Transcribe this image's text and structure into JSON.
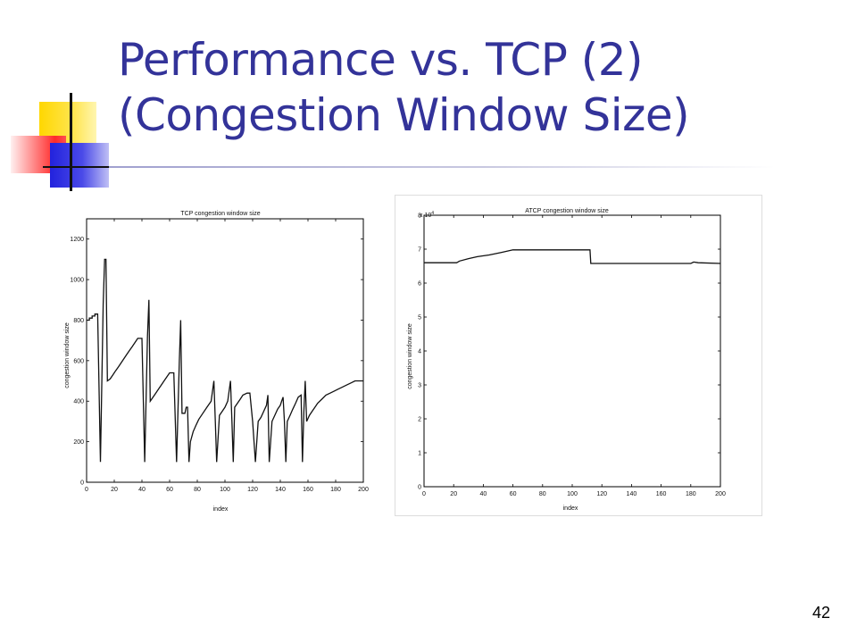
{
  "slide": {
    "title_line1": "Performance vs. TCP (2)",
    "title_line2": "(Congestion Window Size)",
    "page_number": "42"
  },
  "colors": {
    "title": "#333399",
    "deco_yellow": "#ffd700",
    "deco_blue": "#2222dd",
    "deco_red": "#ff3333"
  },
  "chart_data": [
    {
      "type": "line",
      "title": "TCP congestion window size",
      "xlabel": "index",
      "ylabel": "congestion window size",
      "xlim": [
        0,
        200
      ],
      "ylim": [
        0,
        1300
      ],
      "xticks": [
        0,
        20,
        40,
        60,
        80,
        100,
        120,
        140,
        160,
        180,
        200
      ],
      "yticks": [
        0,
        200,
        400,
        600,
        800,
        1000,
        1200
      ],
      "grid": false,
      "series": [
        {
          "points": [
            [
              0,
              800
            ],
            [
              2,
              800
            ],
            [
              2,
              810
            ],
            [
              4,
              810
            ],
            [
              4,
              820
            ],
            [
              6,
              820
            ],
            [
              6,
              830
            ],
            [
              8,
              830
            ],
            [
              10,
              100
            ],
            [
              12,
              880
            ],
            [
              13,
              1100
            ],
            [
              14,
              1100
            ],
            [
              15,
              500
            ],
            [
              17,
              510
            ],
            [
              19,
              530
            ],
            [
              21,
              550
            ],
            [
              23,
              570
            ],
            [
              25,
              590
            ],
            [
              27,
              610
            ],
            [
              29,
              630
            ],
            [
              31,
              650
            ],
            [
              33,
              670
            ],
            [
              35,
              690
            ],
            [
              37,
              710
            ],
            [
              40,
              710
            ],
            [
              42,
              100
            ],
            [
              44,
              720
            ],
            [
              45,
              900
            ],
            [
              46,
              400
            ],
            [
              48,
              420
            ],
            [
              50,
              440
            ],
            [
              52,
              460
            ],
            [
              54,
              480
            ],
            [
              56,
              500
            ],
            [
              58,
              520
            ],
            [
              60,
              540
            ],
            [
              63,
              540
            ],
            [
              65,
              100
            ],
            [
              67,
              600
            ],
            [
              68,
              800
            ],
            [
              69,
              340
            ],
            [
              71,
              340
            ],
            [
              72,
              370
            ],
            [
              73,
              370
            ],
            [
              74,
              100
            ],
            [
              75,
              200
            ],
            [
              77,
              250
            ],
            [
              79,
              280
            ],
            [
              81,
              310
            ],
            [
              84,
              340
            ],
            [
              87,
              370
            ],
            [
              90,
              400
            ],
            [
              92,
              500
            ],
            [
              93,
              300
            ],
            [
              94,
              100
            ],
            [
              96,
              330
            ],
            [
              98,
              350
            ],
            [
              100,
              370
            ],
            [
              102,
              400
            ],
            [
              104,
              500
            ],
            [
              105,
              300
            ],
            [
              106,
              100
            ],
            [
              107,
              370
            ],
            [
              109,
              390
            ],
            [
              111,
              410
            ],
            [
              113,
              430
            ],
            [
              116,
              440
            ],
            [
              118,
              440
            ],
            [
              120,
              300
            ],
            [
              122,
              100
            ],
            [
              124,
              300
            ],
            [
              126,
              320
            ],
            [
              128,
              350
            ],
            [
              130,
              380
            ],
            [
              131,
              430
            ],
            [
              132,
              100
            ],
            [
              134,
              300
            ],
            [
              136,
              330
            ],
            [
              138,
              360
            ],
            [
              140,
              380
            ],
            [
              141,
              400
            ],
            [
              142,
              420
            ],
            [
              143,
              300
            ],
            [
              144,
              100
            ],
            [
              145,
              300
            ],
            [
              147,
              330
            ],
            [
              149,
              360
            ],
            [
              151,
              390
            ],
            [
              153,
              420
            ],
            [
              155,
              430
            ],
            [
              156,
              100
            ],
            [
              157,
              350
            ],
            [
              158,
              500
            ],
            [
              159,
              300
            ],
            [
              161,
              330
            ],
            [
              163,
              350
            ],
            [
              165,
              370
            ],
            [
              167,
              390
            ],
            [
              170,
              410
            ],
            [
              173,
              430
            ],
            [
              176,
              440
            ],
            [
              179,
              450
            ],
            [
              182,
              460
            ],
            [
              185,
              470
            ],
            [
              188,
              480
            ],
            [
              191,
              490
            ],
            [
              194,
              500
            ],
            [
              200,
              500
            ]
          ]
        }
      ]
    },
    {
      "type": "line",
      "title": "ATCP congestion window size",
      "xlabel": "index",
      "ylabel": "congestion window size",
      "y_multiplier": "x 10",
      "y_multiplier_exp": "4",
      "xlim": [
        0,
        200
      ],
      "ylim": [
        0,
        8
      ],
      "xticks": [
        0,
        20,
        40,
        60,
        80,
        100,
        120,
        140,
        160,
        180,
        200
      ],
      "yticks": [
        0,
        1,
        2,
        3,
        4,
        5,
        6,
        7,
        8
      ],
      "grid": false,
      "series": [
        {
          "points": [
            [
              0,
              6.6
            ],
            [
              22,
              6.6
            ],
            [
              24,
              6.65
            ],
            [
              30,
              6.72
            ],
            [
              36,
              6.78
            ],
            [
              44,
              6.83
            ],
            [
              52,
              6.9
            ],
            [
              60,
              6.98
            ],
            [
              112,
              6.98
            ],
            [
              112.5,
              6.58
            ],
            [
              180,
              6.58
            ],
            [
              182,
              6.62
            ],
            [
              185,
              6.6
            ],
            [
              200,
              6.58
            ]
          ]
        }
      ]
    }
  ]
}
